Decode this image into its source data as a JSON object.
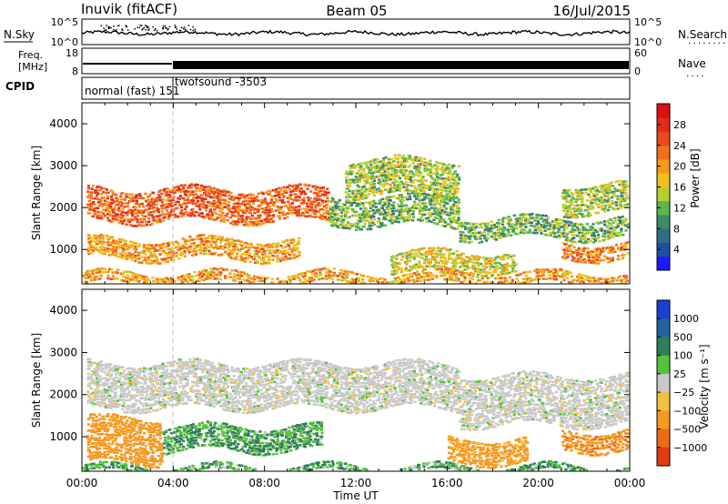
{
  "header": {
    "station": "Inuvik (fitACF)",
    "beam": "Beam 05",
    "date": "16/Jul/2015"
  },
  "noise_panel": {
    "left_label": "N.Sky",
    "right_label": "N.Search",
    "right_label_dots": "........",
    "ticks_top": "10^5",
    "ticks_bottom": "10^0"
  },
  "freq_panel": {
    "left_label_1": "Freq.",
    "left_label_2": "[MHz]",
    "left_tick_top": "18",
    "left_tick_bottom": "8",
    "right_label": "Nave",
    "right_label_dots": "....",
    "right_tick_top": "60",
    "right_tick_bottom": "0"
  },
  "cpid_panel": {
    "label": "CPID",
    "modes": [
      "normal (fast) 151",
      "twofsound -3503"
    ]
  },
  "chart_data": [
    {
      "type": "heatmap",
      "title": "Power",
      "ylabel": "Slant Range [km]",
      "xlabel": "Time UT",
      "ylim": [
        180,
        4500
      ],
      "yticks": [
        1000,
        2000,
        3000,
        4000
      ],
      "xticks": [
        "00:00",
        "04:00",
        "08:00",
        "12:00",
        "16:00",
        "20:00",
        "00:00"
      ],
      "colorbar": {
        "label": "Power [dB]",
        "ticks": [
          4,
          8,
          12,
          16,
          20,
          24,
          28
        ],
        "colors": [
          "#1a1aff",
          "#1f4fa5",
          "#2f6e86",
          "#3d8a66",
          "#5db54e",
          "#b8cf2d",
          "#f2c11c",
          "#f59a1a",
          "#f0701c",
          "#ea4a1c",
          "#e52a1a",
          "#dd1010"
        ]
      },
      "bands": [
        {
          "t0": 0.2,
          "t1": 10.8,
          "r0": 1700,
          "r1": 2500,
          "level": 24
        },
        {
          "t0": 10.8,
          "t1": 16.5,
          "r0": 1600,
          "r1": 2300,
          "level": 12
        },
        {
          "t0": 16.5,
          "t1": 23.9,
          "r0": 1300,
          "r1": 1800,
          "level": 12
        },
        {
          "t0": 0.2,
          "t1": 9.5,
          "r0": 800,
          "r1": 1300,
          "level": 20
        },
        {
          "t0": 13.5,
          "t1": 19.0,
          "r0": 500,
          "r1": 1000,
          "level": 16
        },
        {
          "t0": 21.0,
          "t1": 23.9,
          "r0": 800,
          "r1": 1200,
          "level": 22
        },
        {
          "t0": 0.0,
          "t1": 23.9,
          "r0": 200,
          "r1": 500,
          "level": 20
        },
        {
          "t0": 11.5,
          "t1": 16.5,
          "r0": 2300,
          "r1": 3200,
          "level": 14
        },
        {
          "t0": 21.0,
          "t1": 23.9,
          "r0": 1900,
          "r1": 2600,
          "level": 14
        }
      ]
    },
    {
      "type": "heatmap",
      "title": "Velocity",
      "ylabel": "Slant Range [km]",
      "xlabel": "Time UT",
      "ylim": [
        180,
        4500
      ],
      "yticks": [
        1000,
        2000,
        3000,
        4000
      ],
      "xticks": [
        "00:00",
        "04:00",
        "08:00",
        "12:00",
        "16:00",
        "20:00",
        "00:00"
      ],
      "colorbar": {
        "label": "Velocity [m s⁻¹]",
        "ticks": [
          1000,
          500,
          100,
          25,
          -25,
          -100,
          -500,
          -1000
        ],
        "tick_labels": [
          "1000",
          "500",
          "100",
          "25",
          "−25",
          "−100",
          "−500",
          "−1000"
        ],
        "colors": [
          "#1d3fd8",
          "#23649c",
          "#2f7d5c",
          "#55c23b",
          "#c8c8c8",
          "#f2c040",
          "#f5991f",
          "#ee6a17",
          "#e23b12"
        ]
      },
      "bands": [
        {
          "t0": 0.2,
          "t1": 16.5,
          "r0": 1700,
          "r1": 2800,
          "level": 0
        },
        {
          "t0": 16.5,
          "t1": 23.9,
          "r0": 1300,
          "r1": 2500,
          "level": 0
        },
        {
          "t0": 3.5,
          "t1": 10.5,
          "r0": 700,
          "r1": 1300,
          "level": 100
        },
        {
          "t0": 0.2,
          "t1": 3.5,
          "r0": 400,
          "r1": 1500,
          "level": -300
        },
        {
          "t0": 21.0,
          "t1": 23.9,
          "r0": 700,
          "r1": 1200,
          "level": -400
        },
        {
          "t0": 16.0,
          "t1": 19.5,
          "r0": 400,
          "r1": 1000,
          "level": -200
        },
        {
          "t0": 0.0,
          "t1": 23.9,
          "r0": 180,
          "r1": 350,
          "level": 80
        }
      ]
    }
  ]
}
